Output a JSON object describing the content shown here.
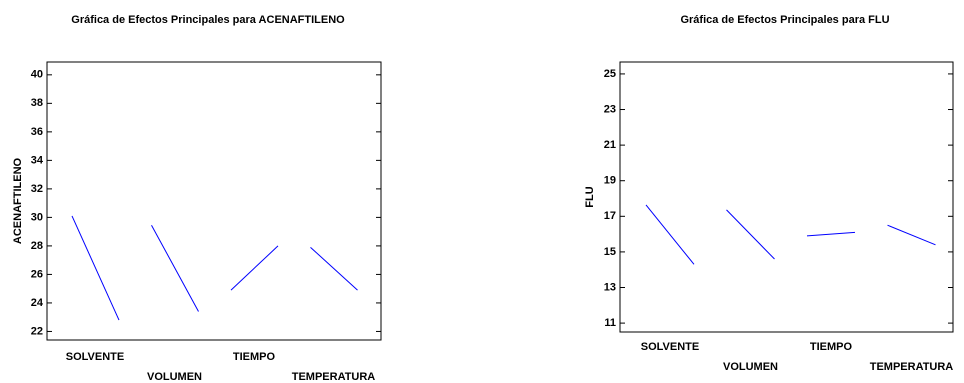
{
  "chart_data": [
    {
      "type": "line",
      "title": "Gráfica de Efectos Principales para ACENAFTILENO",
      "y_label": "ACENAFTILENO",
      "categories": [
        "SOLVENTE",
        "VOLUMEN",
        "TIEMPO",
        "TEMPERATURA"
      ],
      "values": [
        [
          30.1,
          22.8
        ],
        [
          29.45,
          23.4
        ],
        [
          24.9,
          28.0
        ],
        [
          27.9,
          24.9
        ]
      ],
      "color": "#0000ff",
      "ylim": [
        21.4,
        40.9
      ],
      "yticks": [
        22,
        24,
        26,
        28,
        30,
        32,
        34,
        36,
        38,
        40
      ]
    },
    {
      "type": "line",
      "title": "Gráfica de Efectos Principales para FLU",
      "y_label": "FLU",
      "categories": [
        "SOLVENTE",
        "VOLUMEN",
        "TIEMPO",
        "TEMPERATURA"
      ],
      "values": [
        [
          17.64,
          14.3
        ],
        [
          17.36,
          14.6
        ],
        [
          15.9,
          16.1
        ],
        [
          16.5,
          15.4
        ]
      ],
      "color": "#0000ff",
      "ylim": [
        10.5,
        25.67
      ],
      "yticks": [
        11,
        13,
        15,
        17,
        19,
        21,
        23,
        25
      ]
    }
  ]
}
